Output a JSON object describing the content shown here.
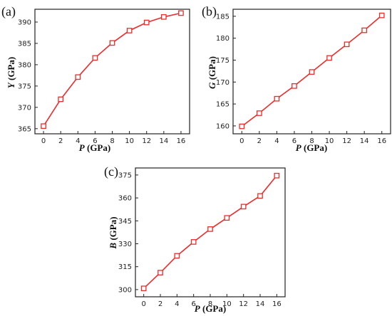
{
  "style": {
    "line_color": "#ee2b2b",
    "marker_fill": "#ffffff",
    "axis_color": "#222222"
  },
  "chart_data": [
    {
      "type": "line",
      "panel_label": "(a)",
      "xlabel": {
        "var": "P",
        "unit": " (GPa)"
      },
      "ylabel": {
        "var": "Y",
        "unit": " (GPa)"
      },
      "x_ticks": [
        0,
        2,
        4,
        6,
        8,
        10,
        12,
        14,
        16
      ],
      "y_ticks": [
        365,
        370,
        375,
        380,
        385,
        390
      ],
      "xlim": [
        -1,
        17
      ],
      "ylim": [
        363.8,
        393
      ],
      "grid": false,
      "series": [
        {
          "x": [
            0,
            2,
            4,
            6,
            8,
            10,
            12,
            14,
            16
          ],
          "y": [
            365.6,
            371.9,
            377.1,
            381.6,
            385.1,
            388.0,
            389.9,
            391.2,
            392.1
          ]
        }
      ]
    },
    {
      "type": "line",
      "panel_label": "(b)",
      "xlabel": {
        "var": "P",
        "unit": " (GPa)"
      },
      "ylabel": {
        "var": "G",
        "unit": " (GPa)"
      },
      "x_ticks": [
        0,
        2,
        4,
        6,
        8,
        10,
        12,
        14,
        16
      ],
      "y_ticks": [
        160,
        165,
        170,
        175,
        180,
        185
      ],
      "xlim": [
        -1,
        17
      ],
      "ylim": [
        158.2,
        186.6
      ],
      "grid": false,
      "series": [
        {
          "x": [
            0,
            2,
            4,
            6,
            8,
            10,
            12,
            14,
            16
          ],
          "y": [
            159.9,
            162.9,
            166.2,
            169.1,
            172.3,
            175.5,
            178.6,
            181.8,
            185.2
          ]
        }
      ]
    },
    {
      "type": "line",
      "panel_label": "(c)",
      "xlabel": {
        "var": "P",
        "unit": " (GPa)"
      },
      "ylabel": {
        "var": "B",
        "unit": " (GPa)"
      },
      "x_ticks": [
        0,
        2,
        4,
        6,
        8,
        10,
        12,
        14,
        16
      ],
      "y_ticks": [
        300,
        315,
        330,
        345,
        360,
        375
      ],
      "xlim": [
        -1,
        17
      ],
      "ylim": [
        295.3,
        379.6
      ],
      "grid": false,
      "series": [
        {
          "x": [
            0,
            2,
            4,
            6,
            8,
            10,
            12,
            14,
            16
          ],
          "y": [
            300.8,
            311.1,
            322.1,
            331.2,
            339.6,
            346.9,
            354.3,
            361.3,
            374.6
          ]
        }
      ]
    }
  ]
}
